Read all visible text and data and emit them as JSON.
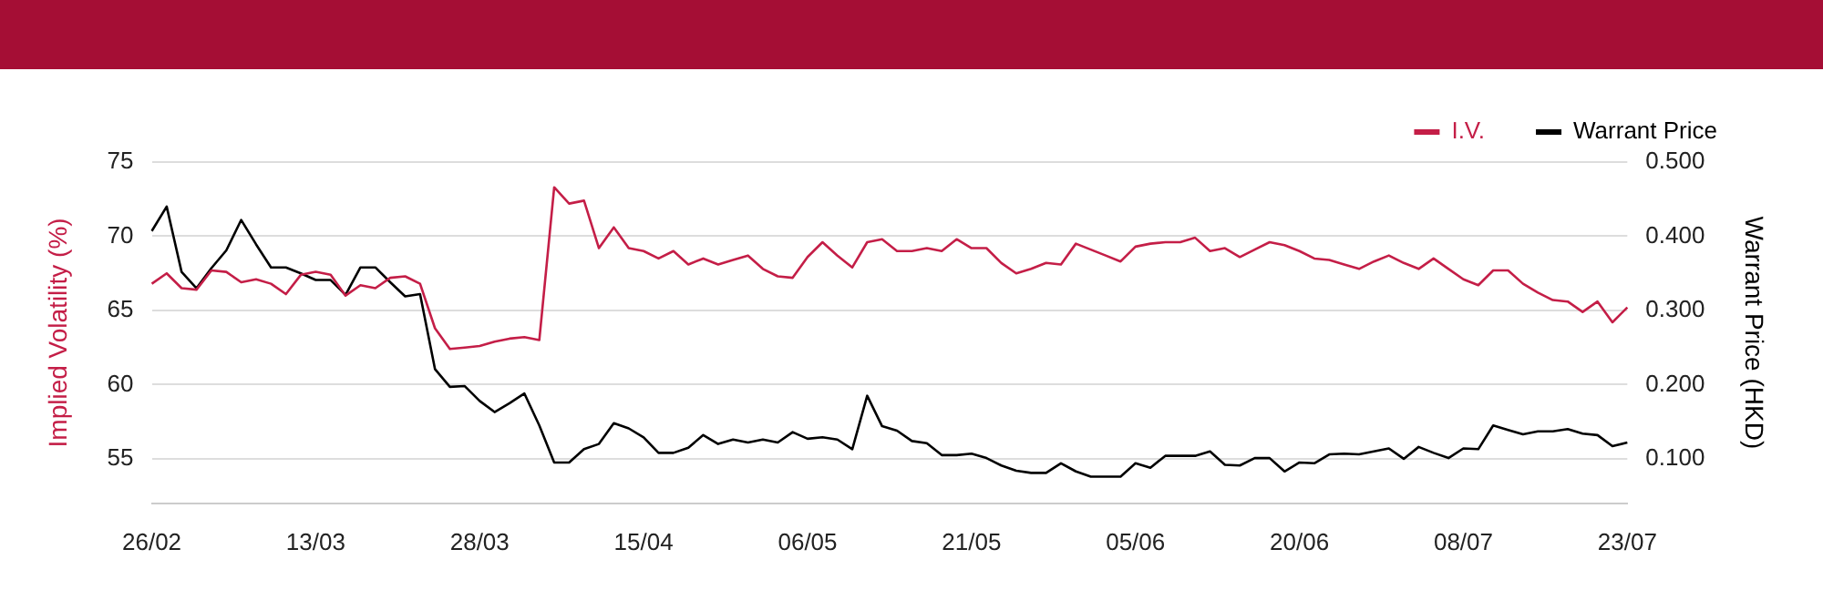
{
  "chart_data": {
    "type": "line",
    "xlabel": null,
    "ylabel": "Implied Volatility (%)",
    "y2label": "Warrant Price (HKD)",
    "categories": [
      "26/02",
      null,
      null,
      null,
      null,
      null,
      null,
      null,
      null,
      null,
      null,
      "13/03",
      null,
      null,
      null,
      null,
      null,
      null,
      null,
      null,
      null,
      null,
      "28/03",
      null,
      null,
      null,
      null,
      null,
      null,
      null,
      null,
      null,
      null,
      "15/04",
      null,
      null,
      null,
      null,
      null,
      null,
      null,
      null,
      null,
      null,
      "06/05",
      null,
      null,
      null,
      null,
      null,
      null,
      null,
      null,
      null,
      null,
      "21/05",
      null,
      null,
      null,
      null,
      null,
      null,
      null,
      null,
      null,
      null,
      "05/06",
      null,
      null,
      null,
      null,
      null,
      null,
      null,
      null,
      null,
      null,
      "20/06",
      null,
      null,
      null,
      null,
      null,
      null,
      null,
      null,
      null,
      null,
      "08/07",
      null,
      null,
      null,
      null,
      null,
      null,
      null,
      null,
      null,
      null,
      "23/07"
    ],
    "series": [
      {
        "name": "I.V.",
        "color": "#c41e47",
        "values": [
          66.8,
          67.5,
          66.5,
          66.4,
          67.7,
          67.6,
          66.9,
          67.1,
          66.8,
          66.1,
          67.4,
          67.6,
          67.4,
          66.0,
          66.7,
          66.5,
          67.2,
          67.3,
          66.8,
          63.8,
          62.4,
          62.5,
          62.6,
          62.9,
          63.1,
          63.2,
          63.0,
          73.3,
          72.2,
          72.4,
          69.2,
          70.6,
          69.2,
          69.0,
          68.5,
          69.0,
          68.1,
          68.5,
          68.1,
          68.4,
          68.7,
          67.8,
          67.3,
          67.2,
          68.6,
          69.6,
          68.7,
          67.9,
          69.6,
          69.8,
          69.0,
          69.0,
          69.2,
          69.0,
          69.8,
          69.2,
          69.2,
          68.2,
          67.5,
          67.8,
          68.2,
          68.1,
          69.5,
          69.1,
          68.7,
          68.3,
          69.3,
          69.5,
          69.6,
          69.6,
          69.9,
          69.0,
          69.2,
          68.6,
          69.1,
          69.6,
          69.4,
          69.0,
          68.5,
          68.4,
          68.1,
          67.8,
          68.3,
          68.7,
          68.2,
          67.8,
          68.5,
          67.8,
          67.1,
          66.7,
          67.7,
          67.7,
          66.8,
          66.2,
          65.7,
          65.6,
          64.9,
          65.6,
          64.2,
          65.2
        ]
      },
      {
        "name": "Warrant Price",
        "color": "#000000",
        "axis": "y2",
        "values": [
          0.407,
          0.44,
          0.352,
          0.33,
          0.357,
          0.381,
          0.422,
          0.389,
          0.358,
          0.358,
          0.35,
          0.341,
          0.341,
          0.321,
          0.358,
          0.358,
          0.338,
          0.319,
          0.322,
          0.221,
          0.197,
          0.198,
          0.178,
          0.163,
          0.175,
          0.188,
          0.145,
          0.095,
          0.095,
          0.113,
          0.12,
          0.148,
          0.141,
          0.129,
          0.108,
          0.108,
          0.115,
          0.132,
          0.12,
          0.126,
          0.122,
          0.126,
          0.122,
          0.136,
          0.127,
          0.129,
          0.126,
          0.113,
          0.185,
          0.144,
          0.138,
          0.124,
          0.121,
          0.105,
          0.105,
          0.107,
          0.101,
          0.091,
          0.084,
          0.081,
          0.081,
          0.094,
          0.083,
          0.076,
          0.076,
          0.076,
          0.094,
          0.088,
          0.104,
          0.104,
          0.104,
          0.11,
          0.092,
          0.091,
          0.101,
          0.101,
          0.083,
          0.095,
          0.094,
          0.106,
          0.107,
          0.106,
          0.11,
          0.114,
          0.1,
          0.116,
          0.108,
          0.101,
          0.114,
          0.113,
          0.145,
          0.139,
          0.133,
          0.137,
          0.137,
          0.14,
          0.134,
          0.132,
          0.117,
          0.122
        ]
      }
    ],
    "ylim": [
      52,
      75
    ],
    "yticks": [
      55,
      60,
      65,
      70,
      75
    ],
    "y2lim": [
      0.04,
      0.5
    ],
    "y2ticks": [
      {
        "value": 0.1,
        "label": "0.100"
      },
      {
        "value": 0.2,
        "label": "0.200"
      },
      {
        "value": 0.3,
        "label": "0.300"
      },
      {
        "value": 0.4,
        "label": "0.400"
      },
      {
        "value": 0.5,
        "label": "0.500"
      }
    ],
    "grid": "y",
    "legend": "top right",
    "marker": "none",
    "line_style": "solid"
  }
}
